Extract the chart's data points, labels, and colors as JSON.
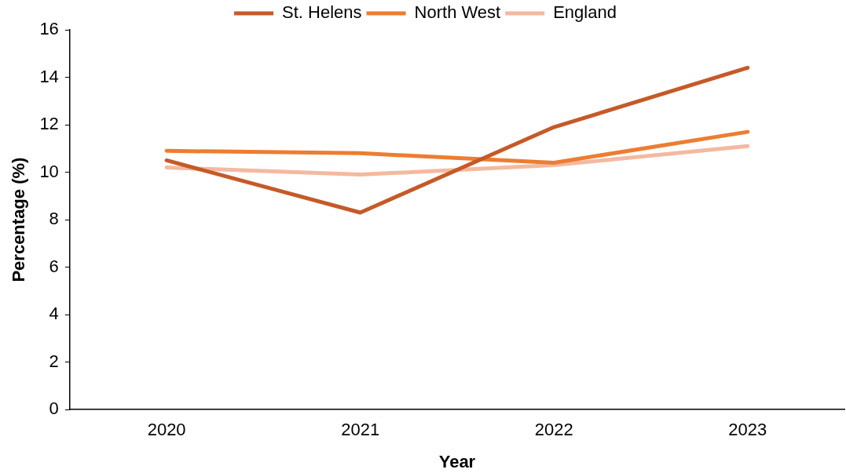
{
  "chart_data": {
    "type": "line",
    "xlabel": "Year",
    "ylabel": "Percentage (%)",
    "categories": [
      "2020",
      "2021",
      "2022",
      "2023"
    ],
    "series": [
      {
        "name": "St. Helens",
        "color": "#c55a28",
        "values": [
          10.5,
          8.3,
          11.9,
          14.4
        ]
      },
      {
        "name": "North West",
        "color": "#ed7d31",
        "values": [
          10.9,
          10.8,
          10.4,
          11.7
        ]
      },
      {
        "name": "England",
        "color": "#f4b9a0",
        "values": [
          10.2,
          9.9,
          10.3,
          11.1
        ]
      }
    ],
    "ylim": [
      0,
      16
    ],
    "yticks": [
      0,
      2,
      4,
      6,
      8,
      10,
      12,
      14,
      16
    ],
    "grid": false,
    "legend": "top",
    "marker": "none",
    "line_style": "solid"
  }
}
